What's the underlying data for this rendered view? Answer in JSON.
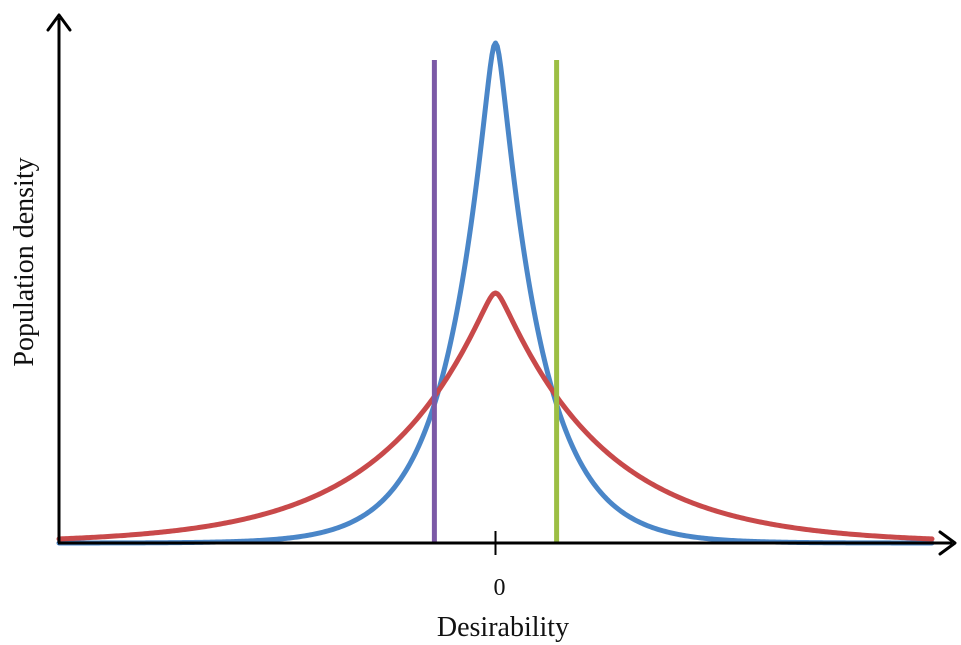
{
  "chart_data": {
    "type": "line",
    "title": "",
    "xlabel": "Desirability",
    "ylabel": "Population density",
    "x_ticks": [
      {
        "value": 0,
        "label": "0"
      }
    ],
    "xlim": [
      -1,
      1
    ],
    "ylim": [
      0,
      1.05
    ],
    "grid": false,
    "legend": "none",
    "series": [
      {
        "color": "#4a86c8",
        "peak_x": 0,
        "peak_y": 1.0,
        "shape": "laplace",
        "scale": 0.1
      },
      {
        "color": "#c8494a",
        "peak_x": 0,
        "peak_y": 0.5,
        "shape": "laplace",
        "scale": 0.24
      }
    ],
    "vertical_lines": [
      {
        "x": -0.14,
        "color": "#7b59a6"
      },
      {
        "x": 0.14,
        "color": "#9cbe44"
      }
    ]
  }
}
